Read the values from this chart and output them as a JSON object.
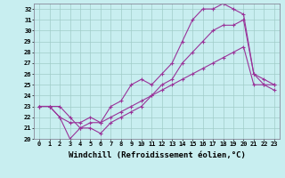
{
  "bg_color": "#c8eef0",
  "line_color": "#993399",
  "grid_color": "#a0ccc8",
  "xlabel": "Windchill (Refroidissement éolien,°C)",
  "xlim": [
    -0.5,
    23.5
  ],
  "ylim": [
    20,
    32.5
  ],
  "xticks": [
    0,
    1,
    2,
    3,
    4,
    5,
    6,
    7,
    8,
    9,
    10,
    11,
    12,
    13,
    14,
    15,
    16,
    17,
    18,
    19,
    20,
    21,
    22,
    23
  ],
  "yticks": [
    20,
    21,
    22,
    23,
    24,
    25,
    26,
    27,
    28,
    29,
    30,
    31,
    32
  ],
  "line1_x": [
    0,
    1,
    2,
    3,
    4,
    5,
    6,
    7,
    8,
    9,
    10,
    11,
    12,
    13,
    14,
    15,
    16,
    17,
    18,
    19,
    20,
    21,
    22,
    23
  ],
  "line1_y": [
    23,
    23,
    23,
    22,
    21,
    21.5,
    21.5,
    23,
    23.5,
    25,
    25.5,
    25,
    26,
    27,
    29,
    31,
    32,
    32,
    32.5,
    32,
    31.5,
    26,
    25,
    24.5
  ],
  "line2_x": [
    0,
    1,
    2,
    3,
    4,
    5,
    6,
    7,
    8,
    9,
    10,
    11,
    12,
    13,
    14,
    15,
    16,
    17,
    18,
    19,
    20,
    21,
    22,
    23
  ],
  "line2_y": [
    23,
    23,
    22,
    20,
    21,
    21,
    20.5,
    21.5,
    22,
    22.5,
    23,
    24,
    25,
    25.5,
    27,
    28,
    29,
    30,
    30.5,
    30.5,
    31,
    26,
    25.5,
    25
  ],
  "line3_x": [
    0,
    1,
    2,
    3,
    4,
    5,
    6,
    7,
    8,
    9,
    10,
    11,
    12,
    13,
    14,
    15,
    16,
    17,
    18,
    19,
    20,
    21,
    22,
    23
  ],
  "line3_y": [
    23,
    23,
    22,
    21.5,
    21.5,
    22,
    21.5,
    22,
    22.5,
    23,
    23.5,
    24,
    24.5,
    25,
    25.5,
    26,
    26.5,
    27,
    27.5,
    28,
    28.5,
    25,
    25,
    25
  ],
  "marker": "+",
  "markersize": 3,
  "linewidth": 0.8,
  "tick_fontsize": 5.0,
  "xlabel_fontsize": 6.5
}
